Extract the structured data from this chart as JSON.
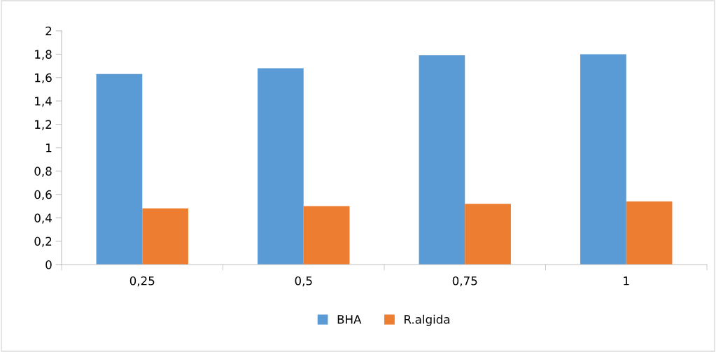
{
  "chart_data": {
    "type": "bar",
    "categories": [
      "0,25",
      "0,5",
      "0,75",
      "1"
    ],
    "series": [
      {
        "name": "BHA",
        "color": "#5b9bd5",
        "values": [
          1.63,
          1.68,
          1.79,
          1.8
        ]
      },
      {
        "name": "R.algida",
        "color": "#ed7d31",
        "values": [
          0.48,
          0.5,
          0.52,
          0.54
        ]
      }
    ],
    "ylim": [
      0,
      2
    ],
    "yticks": [
      0,
      {
        "value": 0.2,
        "label": "0,2"
      },
      {
        "value": 0.4,
        "label": "0,4"
      },
      {
        "value": 0.6,
        "label": "0,6"
      },
      {
        "value": 0.8,
        "label": "0,8"
      },
      1,
      {
        "value": 1.2,
        "label": "1,2"
      },
      {
        "value": 1.4,
        "label": "1,4"
      },
      {
        "value": 1.6,
        "label": "1,6"
      },
      {
        "value": 1.8,
        "label": "1,8"
      },
      2
    ],
    "grid": false,
    "legend": "bottom"
  }
}
